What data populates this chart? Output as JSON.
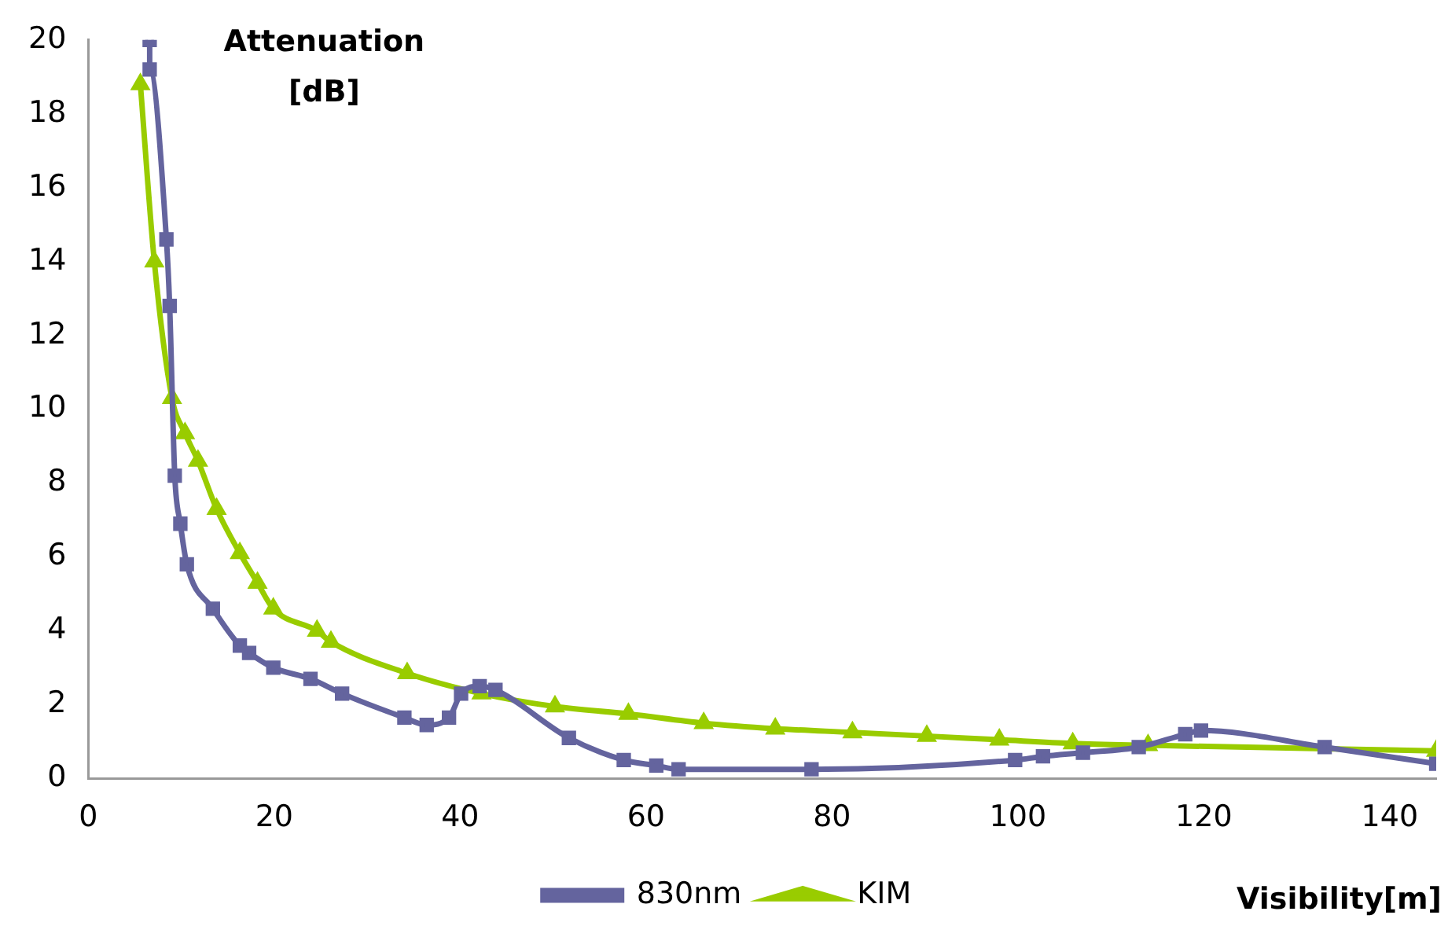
{
  "chart_data": {
    "type": "line",
    "ylabel": "Attenuation [dB]",
    "xlabel": "Visibility[m]",
    "xlim": [
      0,
      145
    ],
    "ylim": [
      0,
      20
    ],
    "xticks": [
      0,
      20,
      40,
      60,
      80,
      100,
      120,
      140
    ],
    "yticks": [
      0,
      2,
      4,
      6,
      8,
      10,
      12,
      14,
      16,
      18,
      20
    ],
    "grid": false,
    "legend": "bottom",
    "series": [
      {
        "name": "830nm",
        "color": "#64649e",
        "marker": "square",
        "x": [
          6.6,
          6.6,
          8.4,
          8.75,
          9.3,
          9.9,
          10.6,
          13.4,
          16.3,
          17.3,
          19.9,
          23.9,
          27.3,
          34,
          36.4,
          38.8,
          40.1,
          42.1,
          43.8,
          51.7,
          57.6,
          61.1,
          63.5,
          77.8,
          99.7,
          102.7,
          107,
          113,
          118,
          119.7,
          133,
          145
        ],
        "values": [
          20,
          19.2,
          14.6,
          12.8,
          8.2,
          6.9,
          5.8,
          4.6,
          3.6,
          3.4,
          3.0,
          2.7,
          2.3,
          1.65,
          1.45,
          1.65,
          2.3,
          2.5,
          2.4,
          1.1,
          0.5,
          0.35,
          0.25,
          0.25,
          0.5,
          0.6,
          0.7,
          0.85,
          1.2,
          1.3,
          0.85,
          0.4
        ]
      },
      {
        "name": "KIM",
        "color": "#99cc00",
        "marker": "triangle",
        "x": [
          5.6,
          7.1,
          9,
          10.4,
          11.8,
          13.8,
          16.3,
          18.2,
          19.9,
          24.6,
          26.1,
          34.3,
          42.3,
          50.2,
          58.1,
          66.2,
          73.9,
          82.2,
          90.2,
          98,
          105.9,
          114,
          145
        ],
        "values": [
          18.8,
          14,
          10.3,
          9.35,
          8.6,
          7.3,
          6.1,
          5.3,
          4.6,
          4.0,
          3.7,
          2.85,
          2.3,
          1.95,
          1.75,
          1.5,
          1.35,
          1.25,
          1.15,
          1.05,
          0.95,
          0.9,
          0.75
        ]
      }
    ]
  }
}
